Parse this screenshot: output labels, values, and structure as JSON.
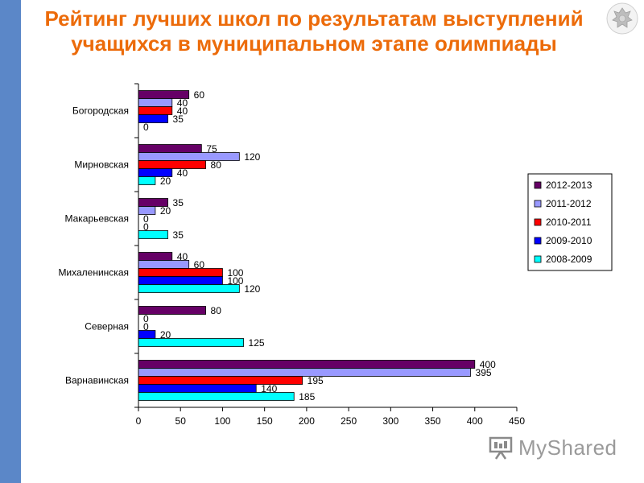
{
  "title": "Рейтинг лучших школ по результатам выступлений учащихся в муниципальном этапе олимпиады",
  "watermark": "MyShared",
  "colors": {
    "accent_title": "#ec6b0a",
    "left_band": "#5b87c8"
  },
  "chart_data": {
    "type": "bar",
    "orientation": "horizontal",
    "categories": [
      "Богородская",
      "Мирновская",
      "Макарьевская",
      "Михаленинская",
      "Северная",
      "Варнавинская"
    ],
    "series": [
      {
        "name": "2012-2013",
        "color": "#660066",
        "values": [
          60,
          75,
          35,
          40,
          80,
          400
        ]
      },
      {
        "name": "2011-2012",
        "color": "#9999ff",
        "values": [
          40,
          120,
          20,
          60,
          0,
          395
        ]
      },
      {
        "name": "2010-2011",
        "color": "#ff0000",
        "values": [
          40,
          80,
          0,
          100,
          0,
          195
        ]
      },
      {
        "name": "2009-2010",
        "color": "#0000ff",
        "values": [
          35,
          40,
          0,
          100,
          20,
          140
        ]
      },
      {
        "name": "2008-2009",
        "color": "#00ffff",
        "values": [
          0,
          20,
          35,
          120,
          125,
          185
        ]
      }
    ],
    "xlim": [
      0,
      450
    ],
    "xticks": [
      0,
      50,
      100,
      150,
      200,
      250,
      300,
      350,
      400,
      450
    ],
    "xlabel": "",
    "ylabel": "",
    "grid": false,
    "legend_position": "right"
  }
}
